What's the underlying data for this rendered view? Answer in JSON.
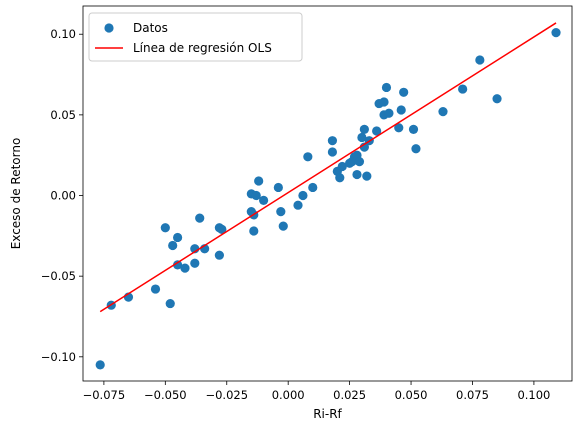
{
  "chart_data": {
    "type": "scatter",
    "xlabel": "Ri-Rf",
    "ylabel": "Exceso de Retorno",
    "xlim": [
      -0.0835,
      0.1155
    ],
    "ylim": [
      -0.115,
      0.1175
    ],
    "x_ticks": [
      -0.075,
      -0.05,
      -0.025,
      0.0,
      0.025,
      0.05,
      0.075,
      0.1
    ],
    "x_tick_labels": [
      "−0.075",
      "−0.050",
      "−0.025",
      "0.000",
      "0.025",
      "0.050",
      "0.075",
      "0.100"
    ],
    "y_ticks": [
      -0.1,
      -0.05,
      0.0,
      0.05,
      0.1
    ],
    "y_tick_labels": [
      "−0.10",
      "−0.05",
      "0.00",
      "0.05",
      "0.10"
    ],
    "grid": false,
    "legend_position": "top-left",
    "colors": {
      "points": "#1f77b4",
      "regression": "#ff0000"
    },
    "series": [
      {
        "name": "Datos",
        "kind": "scatter",
        "points": [
          [
            -0.0765,
            -0.105
          ],
          [
            -0.072,
            -0.068
          ],
          [
            -0.065,
            -0.063
          ],
          [
            -0.054,
            -0.058
          ],
          [
            -0.048,
            -0.067
          ],
          [
            -0.05,
            -0.02
          ],
          [
            -0.047,
            -0.031
          ],
          [
            -0.045,
            -0.026
          ],
          [
            -0.045,
            -0.043
          ],
          [
            -0.042,
            -0.045
          ],
          [
            -0.038,
            -0.033
          ],
          [
            -0.038,
            -0.042
          ],
          [
            -0.036,
            -0.014
          ],
          [
            -0.034,
            -0.033
          ],
          [
            -0.028,
            -0.037
          ],
          [
            -0.028,
            -0.02
          ],
          [
            -0.027,
            -0.021
          ],
          [
            -0.015,
            0.001
          ],
          [
            -0.015,
            -0.01
          ],
          [
            -0.014,
            -0.012
          ],
          [
            -0.014,
            -0.022
          ],
          [
            -0.013,
            0.0
          ],
          [
            -0.012,
            0.009
          ],
          [
            -0.01,
            -0.003
          ],
          [
            -0.004,
            0.005
          ],
          [
            -0.003,
            -0.01
          ],
          [
            -0.002,
            -0.019
          ],
          [
            0.004,
            -0.006
          ],
          [
            0.006,
            0.0
          ],
          [
            0.008,
            0.024
          ],
          [
            0.01,
            0.005
          ],
          [
            0.018,
            0.034
          ],
          [
            0.018,
            0.027
          ],
          [
            0.02,
            0.015
          ],
          [
            0.021,
            0.011
          ],
          [
            0.022,
            0.018
          ],
          [
            0.025,
            0.02
          ],
          [
            0.026,
            0.021
          ],
          [
            0.027,
            0.024
          ],
          [
            0.028,
            0.013
          ],
          [
            0.028,
            0.025
          ],
          [
            0.029,
            0.021
          ],
          [
            0.03,
            0.036
          ],
          [
            0.031,
            0.03
          ],
          [
            0.031,
            0.041
          ],
          [
            0.032,
            0.012
          ],
          [
            0.033,
            0.034
          ],
          [
            0.036,
            0.04
          ],
          [
            0.037,
            0.057
          ],
          [
            0.039,
            0.05
          ],
          [
            0.039,
            0.058
          ],
          [
            0.04,
            0.067
          ],
          [
            0.041,
            0.051
          ],
          [
            0.045,
            0.042
          ],
          [
            0.046,
            0.053
          ],
          [
            0.047,
            0.064
          ],
          [
            0.051,
            0.041
          ],
          [
            0.052,
            0.029
          ],
          [
            0.063,
            0.052
          ],
          [
            0.071,
            0.066
          ],
          [
            0.078,
            0.084
          ],
          [
            0.085,
            0.06
          ],
          [
            0.109,
            0.101
          ]
        ]
      },
      {
        "name": "Línea de regresión OLS",
        "kind": "line",
        "points": [
          [
            -0.0765,
            -0.072
          ],
          [
            0.109,
            0.107
          ]
        ]
      }
    ]
  }
}
